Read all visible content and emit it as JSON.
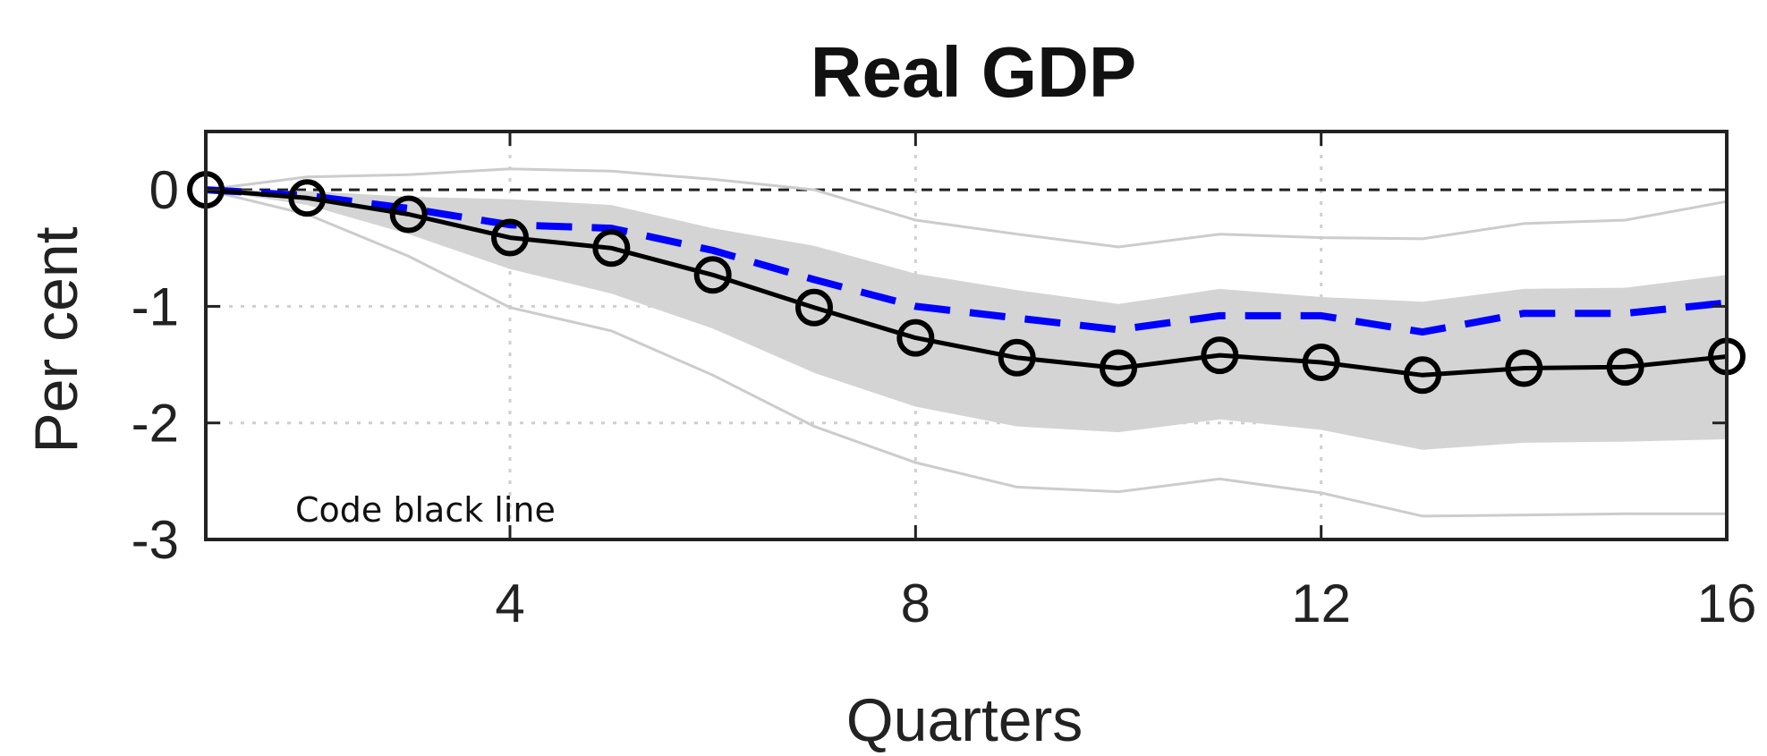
{
  "chart_data": {
    "type": "line",
    "title": "Real GDP",
    "xlabel": "Quarters",
    "ylabel": "Per cent",
    "xlim": [
      1,
      16
    ],
    "ylim": [
      -3,
      0.5
    ],
    "x_ticks": [
      4,
      8,
      12,
      16
    ],
    "y_ticks": [
      0,
      -1,
      -2,
      -3
    ],
    "grid": true,
    "zero_line": true,
    "annotation": "Code black line",
    "x": [
      1,
      2,
      3,
      4,
      5,
      6,
      7,
      8,
      9,
      10,
      11,
      12,
      13,
      14,
      15,
      16
    ],
    "series": [
      {
        "role": "main-black-line",
        "color": "#000000",
        "style": "solid-with-circle-markers",
        "values": [
          0,
          -0.07,
          -0.21,
          -0.41,
          -0.5,
          -0.73,
          -1.01,
          -1.27,
          -1.44,
          -1.53,
          -1.42,
          -1.48,
          -1.59,
          -1.53,
          -1.52,
          -1.43
        ]
      },
      {
        "role": "blue-dashed-line",
        "color": "#0000ff",
        "style": "dashed",
        "values": [
          0,
          -0.05,
          -0.16,
          -0.3,
          -0.33,
          -0.52,
          -0.77,
          -1.0,
          -1.1,
          -1.2,
          -1.08,
          -1.08,
          -1.22,
          -1.06,
          -1.06,
          -0.97
        ]
      },
      {
        "role": "shaded-band",
        "color": "#d4d4d4",
        "style": "band",
        "upper": [
          0,
          -0.01,
          -0.06,
          -0.08,
          -0.13,
          -0.33,
          -0.48,
          -0.72,
          -0.86,
          -0.98,
          -0.85,
          -0.92,
          -0.96,
          -0.85,
          -0.84,
          -0.73
        ],
        "lower": [
          0,
          -0.13,
          -0.38,
          -0.68,
          -0.89,
          -1.19,
          -1.57,
          -1.86,
          -2.03,
          -2.08,
          -1.97,
          -2.06,
          -2.23,
          -2.17,
          -2.16,
          -2.14
        ]
      },
      {
        "role": "outer-upper-line",
        "color": "#cccccc",
        "style": "thin",
        "values": [
          0,
          0.11,
          0.13,
          0.18,
          0.16,
          0.09,
          0.0,
          -0.26,
          -0.38,
          -0.49,
          -0.38,
          -0.41,
          -0.42,
          -0.29,
          -0.26,
          -0.1
        ]
      },
      {
        "role": "outer-lower-line",
        "color": "#cccccc",
        "style": "thin",
        "values": [
          0,
          -0.21,
          -0.57,
          -1.01,
          -1.21,
          -1.59,
          -2.03,
          -2.34,
          -2.55,
          -2.59,
          -2.48,
          -2.6,
          -2.8,
          -2.79,
          -2.78,
          -2.78
        ]
      }
    ]
  }
}
